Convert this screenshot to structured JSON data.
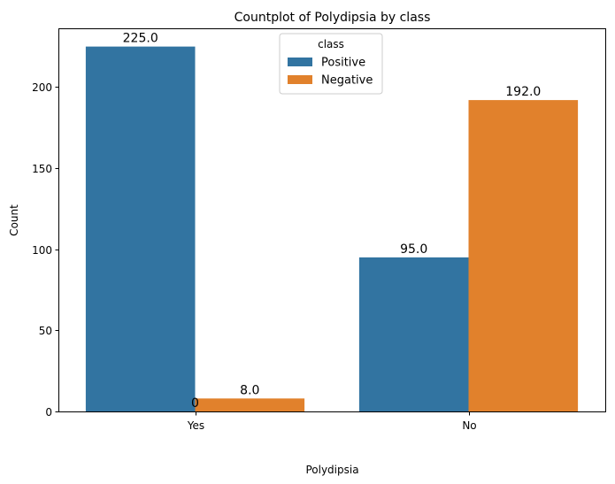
{
  "chart_data": {
    "type": "bar",
    "title": "Countplot of Polydipsia by class",
    "xlabel": "Polydipsia",
    "ylabel": "Count",
    "categories": [
      "Yes",
      "No"
    ],
    "series": [
      {
        "name": "Positive",
        "color": "#3274a1",
        "values": [
          225,
          95
        ],
        "labels": [
          "225.0",
          "95.0"
        ]
      },
      {
        "name": "Negative",
        "color": "#e1812c",
        "values": [
          8,
          192
        ],
        "labels": [
          "8.0",
          "192.0"
        ]
      }
    ],
    "yticks": [
      0,
      50,
      100,
      150,
      200
    ],
    "ylim": [
      0,
      236.25
    ],
    "grid": false,
    "legend": {
      "title": "class",
      "placement": "upper center"
    },
    "annotations": [
      {
        "text": "0",
        "category": "Yes",
        "y": 0
      }
    ]
  }
}
